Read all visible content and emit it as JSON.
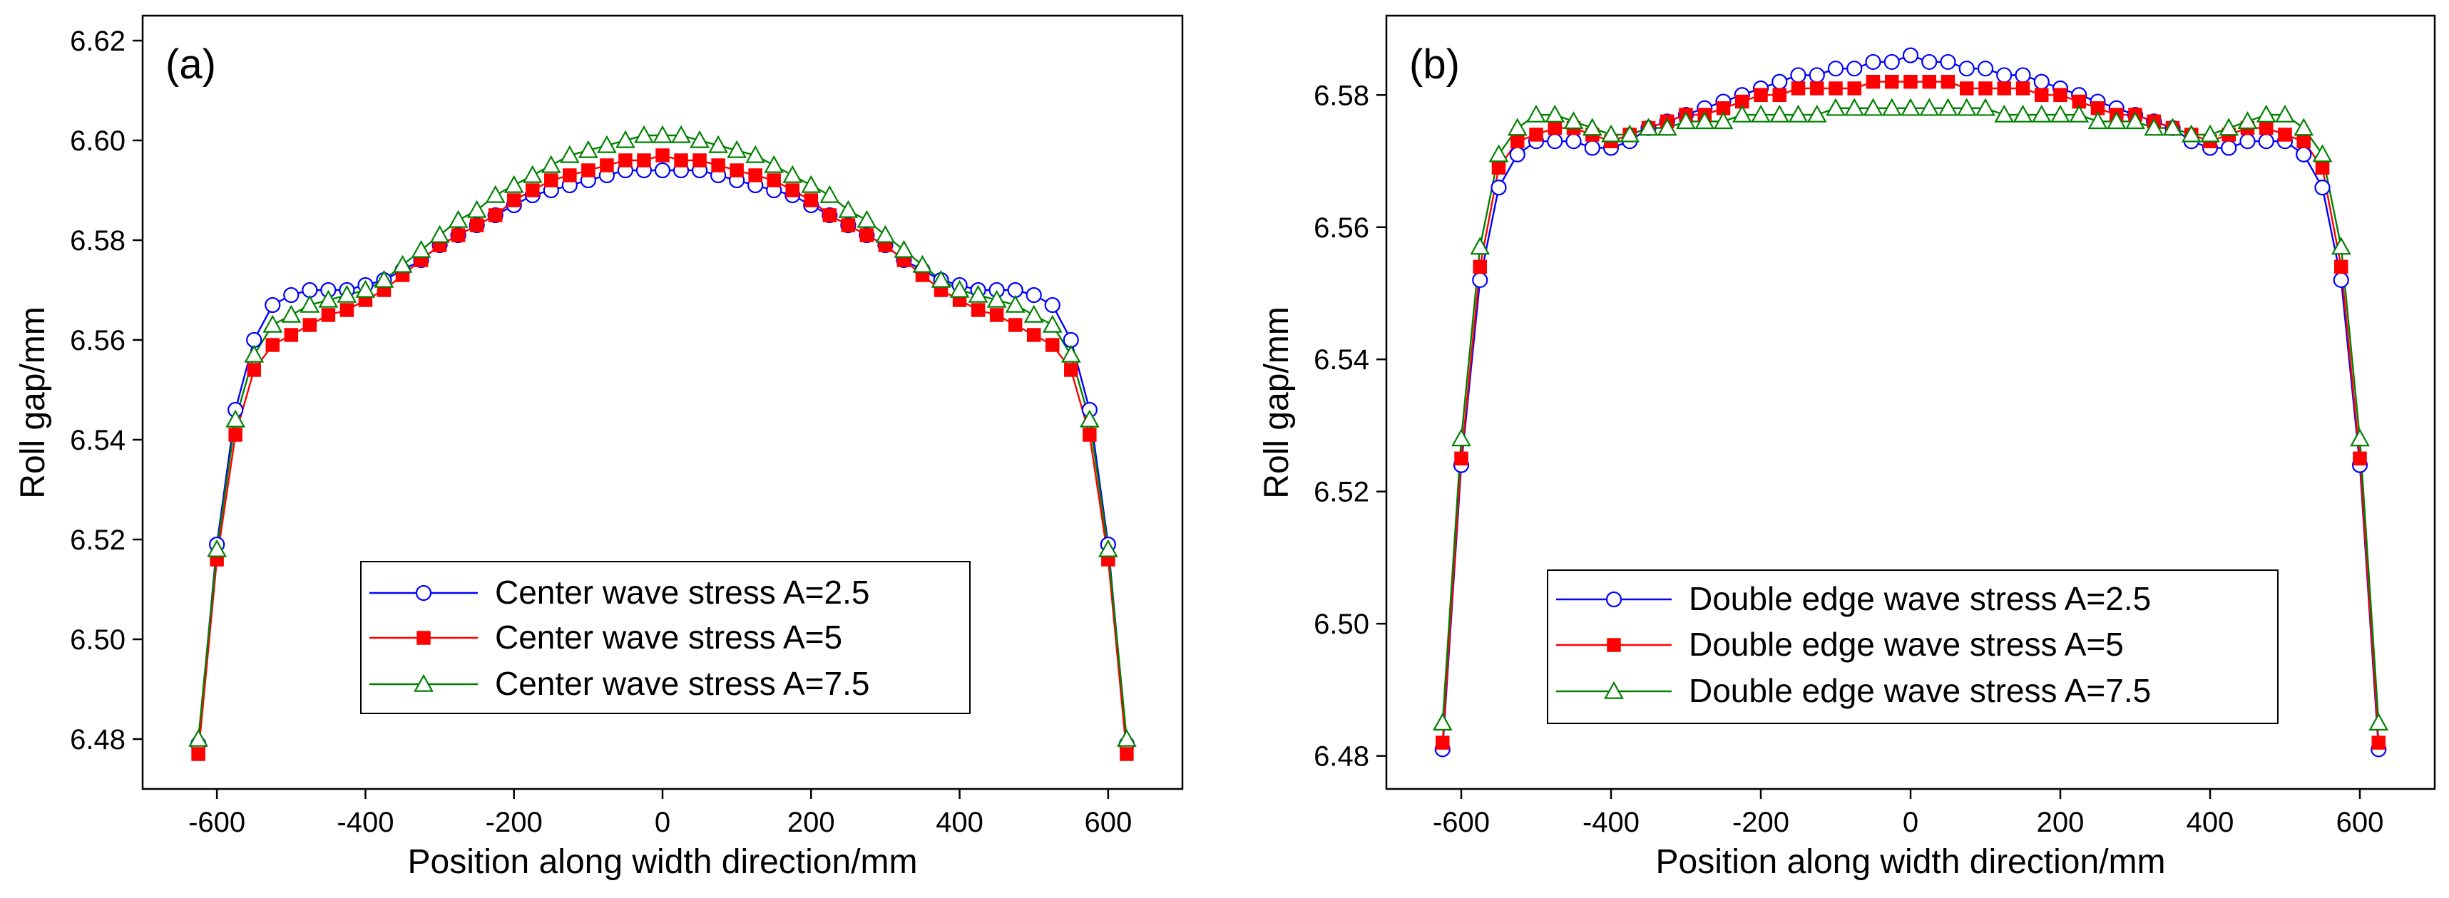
{
  "chart_data": [
    {
      "type": "line",
      "panel_label": "(a)",
      "xlabel": "Position along width direction/mm",
      "ylabel": "Roll gap/mm",
      "xlim": [
        -700,
        700
      ],
      "ylim": [
        6.47,
        6.625
      ],
      "xticks": [
        -600,
        -400,
        -200,
        0,
        200,
        400,
        600
      ],
      "xtick_labels": [
        "-600",
        "-400",
        "-200",
        "0",
        "200",
        "400",
        "600"
      ],
      "yticks": [
        6.48,
        6.5,
        6.52,
        6.54,
        6.56,
        6.58,
        6.6,
        6.62
      ],
      "ytick_labels": [
        "6.48",
        "6.50",
        "6.52",
        "6.54",
        "6.56",
        "6.58",
        "6.60",
        "6.62"
      ],
      "legend_position": "lower-center",
      "x": [
        -625,
        -600,
        -575,
        -550,
        -525,
        -500,
        -475,
        -450,
        -425,
        -400,
        -375,
        -350,
        -325,
        -300,
        -275,
        -250,
        -225,
        -200,
        -175,
        -150,
        -125,
        -100,
        -75,
        -50,
        -25,
        0,
        25,
        50,
        75,
        100,
        125,
        150,
        175,
        200,
        225,
        250,
        275,
        300,
        325,
        350,
        375,
        400,
        425,
        450,
        475,
        500,
        525,
        550,
        575,
        600,
        625
      ],
      "series": [
        {
          "name": "Center wave stress A=2.5",
          "color": "#0000ff",
          "marker": "circle-open",
          "values": [
            6.479,
            6.519,
            6.546,
            6.56,
            6.567,
            6.569,
            6.57,
            6.57,
            6.57,
            6.571,
            6.572,
            6.574,
            6.576,
            6.579,
            6.581,
            6.583,
            6.585,
            6.587,
            6.589,
            6.59,
            6.591,
            6.592,
            6.593,
            6.594,
            6.594,
            6.594,
            6.594,
            6.594,
            6.593,
            6.592,
            6.591,
            6.59,
            6.589,
            6.587,
            6.585,
            6.583,
            6.581,
            6.579,
            6.576,
            6.574,
            6.572,
            6.571,
            6.57,
            6.57,
            6.57,
            6.569,
            6.567,
            6.56,
            6.546,
            6.519,
            6.479
          ]
        },
        {
          "name": "Center wave stress A=5",
          "color": "#ff0000",
          "marker": "square-filled",
          "values": [
            6.477,
            6.516,
            6.541,
            6.554,
            6.559,
            6.561,
            6.563,
            6.565,
            6.566,
            6.568,
            6.57,
            6.573,
            6.576,
            6.579,
            6.581,
            6.583,
            6.585,
            6.588,
            6.59,
            6.592,
            6.593,
            6.594,
            6.595,
            6.596,
            6.596,
            6.597,
            6.596,
            6.596,
            6.595,
            6.594,
            6.593,
            6.592,
            6.59,
            6.588,
            6.585,
            6.583,
            6.581,
            6.579,
            6.576,
            6.573,
            6.57,
            6.568,
            6.566,
            6.565,
            6.563,
            6.561,
            6.559,
            6.554,
            6.541,
            6.516,
            6.477
          ]
        },
        {
          "name": "Center wave stress A=7.5",
          "color": "#008000",
          "marker": "triangle-open",
          "values": [
            6.48,
            6.518,
            6.544,
            6.557,
            6.563,
            6.565,
            6.567,
            6.568,
            6.569,
            6.57,
            6.572,
            6.575,
            6.578,
            6.581,
            6.584,
            6.586,
            6.589,
            6.591,
            6.593,
            6.595,
            6.597,
            6.598,
            6.599,
            6.6,
            6.601,
            6.601,
            6.601,
            6.6,
            6.599,
            6.598,
            6.597,
            6.595,
            6.593,
            6.591,
            6.589,
            6.586,
            6.584,
            6.581,
            6.578,
            6.575,
            6.572,
            6.57,
            6.569,
            6.568,
            6.567,
            6.565,
            6.563,
            6.557,
            6.544,
            6.518,
            6.48
          ]
        }
      ]
    },
    {
      "type": "line",
      "panel_label": "(b)",
      "xlabel": "Position along width direction/mm",
      "ylabel": "Roll gap/mm",
      "xlim": [
        -700,
        700
      ],
      "ylim": [
        6.475,
        6.592
      ],
      "xticks": [
        -600,
        -400,
        -200,
        0,
        200,
        400,
        600
      ],
      "xtick_labels": [
        "-600",
        "-400",
        "-200",
        "0",
        "200",
        "400",
        "600"
      ],
      "yticks": [
        6.48,
        6.5,
        6.52,
        6.54,
        6.56,
        6.58
      ],
      "ytick_labels": [
        "6.48",
        "6.50",
        "6.52",
        "6.54",
        "6.56",
        "6.58"
      ],
      "legend_position": "lower-center",
      "x": [
        -625,
        -600,
        -575,
        -550,
        -525,
        -500,
        -475,
        -450,
        -425,
        -400,
        -375,
        -350,
        -325,
        -300,
        -275,
        -250,
        -225,
        -200,
        -175,
        -150,
        -125,
        -100,
        -75,
        -50,
        -25,
        0,
        25,
        50,
        75,
        100,
        125,
        150,
        175,
        200,
        225,
        250,
        275,
        300,
        325,
        350,
        375,
        400,
        425,
        450,
        475,
        500,
        525,
        550,
        575,
        600,
        625
      ],
      "series": [
        {
          "name": "Double edge wave stress A=2.5",
          "color": "#0000ff",
          "marker": "circle-open",
          "values": [
            6.481,
            6.524,
            6.552,
            6.566,
            6.571,
            6.573,
            6.573,
            6.573,
            6.572,
            6.572,
            6.573,
            6.575,
            6.576,
            6.577,
            6.578,
            6.579,
            6.58,
            6.581,
            6.582,
            6.583,
            6.583,
            6.584,
            6.584,
            6.585,
            6.585,
            6.586,
            6.585,
            6.585,
            6.584,
            6.584,
            6.583,
            6.583,
            6.582,
            6.581,
            6.58,
            6.579,
            6.578,
            6.577,
            6.576,
            6.575,
            6.573,
            6.572,
            6.572,
            6.573,
            6.573,
            6.573,
            6.571,
            6.566,
            6.552,
            6.524,
            6.481
          ]
        },
        {
          "name": "Double edge wave stress A=5",
          "color": "#ff0000",
          "marker": "square-filled",
          "values": [
            6.482,
            6.525,
            6.554,
            6.569,
            6.573,
            6.574,
            6.575,
            6.575,
            6.574,
            6.573,
            6.574,
            6.575,
            6.576,
            6.577,
            6.577,
            6.578,
            6.579,
            6.58,
            6.58,
            6.581,
            6.581,
            6.581,
            6.581,
            6.582,
            6.582,
            6.582,
            6.582,
            6.582,
            6.581,
            6.581,
            6.581,
            6.581,
            6.58,
            6.58,
            6.579,
            6.578,
            6.577,
            6.577,
            6.576,
            6.575,
            6.574,
            6.573,
            6.574,
            6.575,
            6.575,
            6.574,
            6.573,
            6.569,
            6.554,
            6.525,
            6.482
          ]
        },
        {
          "name": "Double edge wave stress A=7.5",
          "color": "#008000",
          "marker": "triangle-open",
          "values": [
            6.485,
            6.528,
            6.557,
            6.571,
            6.575,
            6.577,
            6.577,
            6.576,
            6.575,
            6.574,
            6.574,
            6.575,
            6.575,
            6.576,
            6.576,
            6.576,
            6.577,
            6.577,
            6.577,
            6.577,
            6.577,
            6.578,
            6.578,
            6.578,
            6.578,
            6.578,
            6.578,
            6.578,
            6.578,
            6.578,
            6.577,
            6.577,
            6.577,
            6.577,
            6.577,
            6.576,
            6.576,
            6.576,
            6.575,
            6.575,
            6.574,
            6.574,
            6.575,
            6.576,
            6.577,
            6.577,
            6.575,
            6.571,
            6.557,
            6.528,
            6.485
          ]
        }
      ]
    }
  ]
}
